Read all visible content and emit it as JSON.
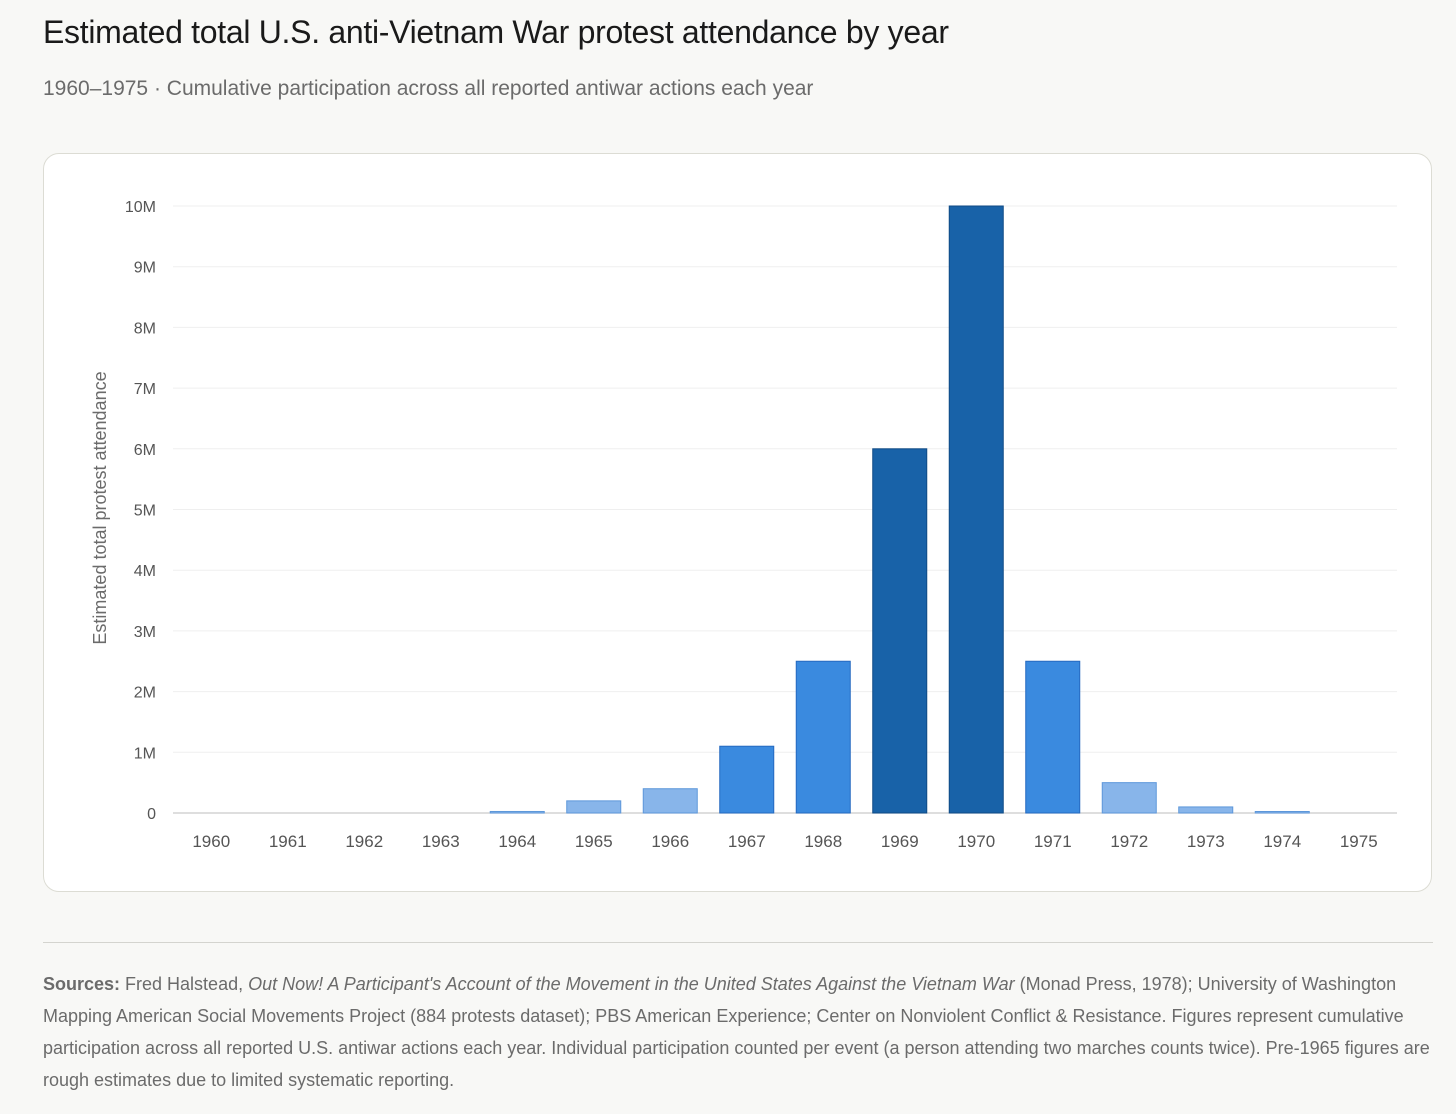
{
  "header": {
    "title": "Estimated total U.S. anti-Vietnam War protest attendance by year",
    "subtitle": "1960–1975 · Cumulative participation across all reported antiwar actions each year"
  },
  "footer": {
    "sources_label": "Sources:",
    "sources_text_1": " Fred Halstead, ",
    "sources_book": "Out Now! A Participant's Account of the Movement in the United States Against the Vietnam War",
    "sources_text_2": " (Monad Press, 1978); University of Washington Mapping American Social Movements Project (884 protests dataset); PBS American Experience; Center on Nonviolent Conflict & Resistance. Figures represent cumulative participation across all reported U.S. antiwar actions each year. Individual participation counted per event (a person attending two marches counts twice). Pre-1965 figures are rough estimates due to limited systematic reporting."
  },
  "chart_data": {
    "type": "bar",
    "title": "Estimated total U.S. anti-Vietnam War protest attendance by year",
    "xlabel": "",
    "ylabel": "Estimated total protest attendance",
    "categories": [
      "1960",
      "1961",
      "1962",
      "1963",
      "1964",
      "1965",
      "1966",
      "1967",
      "1968",
      "1969",
      "1970",
      "1971",
      "1972",
      "1973",
      "1974",
      "1975"
    ],
    "values": [
      0,
      0,
      0,
      0,
      25000,
      200000,
      400000,
      1100000,
      2500000,
      6000000,
      10000000,
      2500000,
      500000,
      100000,
      20000,
      0
    ],
    "ylim": [
      0,
      10000000
    ],
    "yticks": [
      0,
      1000000,
      2000000,
      3000000,
      4000000,
      5000000,
      6000000,
      7000000,
      8000000,
      9000000,
      10000000
    ],
    "ytick_labels": [
      "0",
      "1M",
      "2M",
      "3M",
      "4M",
      "5M",
      "6M",
      "7M",
      "8M",
      "9M",
      "10M"
    ],
    "grid": true,
    "legend": "none",
    "colors": {
      "light": "#88b5ea",
      "medium": "#3a8adf",
      "dark": "#1862a8",
      "light_stroke": "#5d97da",
      "medium_stroke": "#2469c0",
      "dark_stroke": "#0f4a85"
    }
  }
}
